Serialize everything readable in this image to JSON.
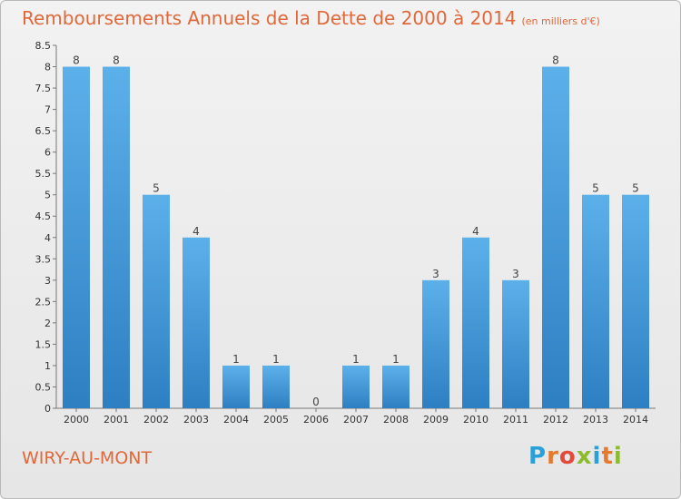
{
  "header": {
    "title": "Remboursements Annuels de la Dette de 2000 à 2014",
    "unit": "(en milliers d'€)"
  },
  "footer": {
    "commune": "WIRY-AU-MONT",
    "logo_letters": [
      "P",
      "r",
      "o",
      "x",
      "i",
      "t",
      "i"
    ],
    "logo_colors": [
      "#2aa0d8",
      "#e67a2c",
      "#e14b3b",
      "#8dbb2f",
      "#2aa0d8",
      "#e67a2c",
      "#8dbb2f"
    ]
  },
  "chart_data": {
    "type": "bar",
    "title": "Remboursements Annuels de la Dette de 2000 à 2014",
    "xlabel": "",
    "ylabel": "",
    "categories": [
      "2000",
      "2001",
      "2002",
      "2003",
      "2004",
      "2005",
      "2006",
      "2007",
      "2008",
      "2009",
      "2010",
      "2011",
      "2012",
      "2013",
      "2014"
    ],
    "values": [
      8,
      8,
      5,
      4,
      1,
      1,
      0,
      1,
      1,
      3,
      4,
      3,
      8,
      5,
      5
    ],
    "ylim": [
      0,
      8.5
    ],
    "yticks": [
      "0",
      "0.5",
      "1",
      "1.5",
      "2",
      "2.5",
      "3",
      "3.5",
      "4",
      "4.5",
      "5",
      "5.5",
      "6",
      "6.5",
      "7",
      "7.5",
      "8",
      "8.5"
    ],
    "grid": false,
    "legend": "none",
    "bar_color_top": "#5cb0ea",
    "bar_color_bottom": "#2e7fc2"
  }
}
